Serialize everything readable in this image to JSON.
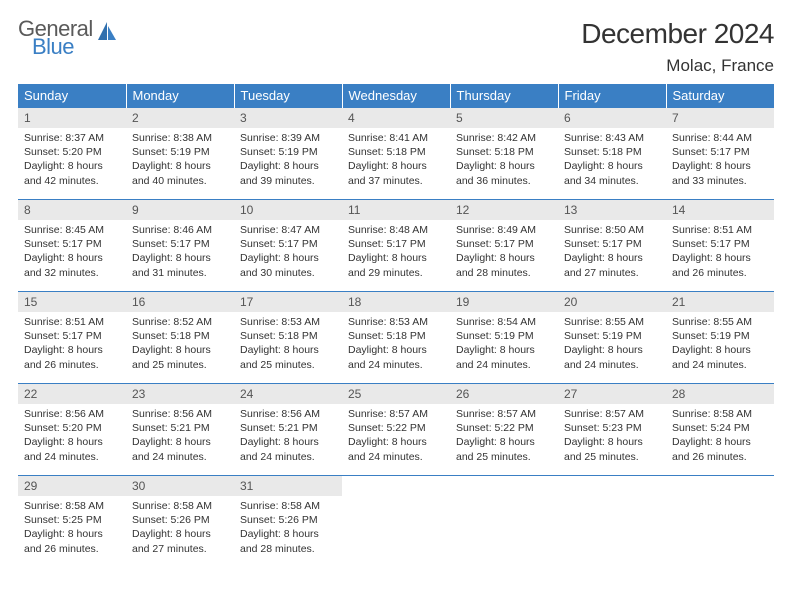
{
  "brand": {
    "line1": "General",
    "line2": "Blue"
  },
  "title": "December 2024",
  "location": "Molac, France",
  "colors": {
    "accent": "#3a7fc4",
    "header_bg": "#3a7fc4",
    "header_text": "#ffffff",
    "daynum_bg": "#e9e9e9",
    "daynum_text": "#555555",
    "body_text": "#333333",
    "logo_gray": "#5a5a5a",
    "page_bg": "#ffffff"
  },
  "typography": {
    "title_fontsize": 28,
    "subtitle_fontsize": 17,
    "dayheader_fontsize": 13,
    "daynum_fontsize": 12,
    "cell_fontsize": 10.5
  },
  "calendar": {
    "type": "table",
    "columns": [
      "Sunday",
      "Monday",
      "Tuesday",
      "Wednesday",
      "Thursday",
      "Friday",
      "Saturday"
    ],
    "weeks": [
      [
        {
          "day": "1",
          "sunrise": "Sunrise: 8:37 AM",
          "sunset": "Sunset: 5:20 PM",
          "daylight1": "Daylight: 8 hours",
          "daylight2": "and 42 minutes."
        },
        {
          "day": "2",
          "sunrise": "Sunrise: 8:38 AM",
          "sunset": "Sunset: 5:19 PM",
          "daylight1": "Daylight: 8 hours",
          "daylight2": "and 40 minutes."
        },
        {
          "day": "3",
          "sunrise": "Sunrise: 8:39 AM",
          "sunset": "Sunset: 5:19 PM",
          "daylight1": "Daylight: 8 hours",
          "daylight2": "and 39 minutes."
        },
        {
          "day": "4",
          "sunrise": "Sunrise: 8:41 AM",
          "sunset": "Sunset: 5:18 PM",
          "daylight1": "Daylight: 8 hours",
          "daylight2": "and 37 minutes."
        },
        {
          "day": "5",
          "sunrise": "Sunrise: 8:42 AM",
          "sunset": "Sunset: 5:18 PM",
          "daylight1": "Daylight: 8 hours",
          "daylight2": "and 36 minutes."
        },
        {
          "day": "6",
          "sunrise": "Sunrise: 8:43 AM",
          "sunset": "Sunset: 5:18 PM",
          "daylight1": "Daylight: 8 hours",
          "daylight2": "and 34 minutes."
        },
        {
          "day": "7",
          "sunrise": "Sunrise: 8:44 AM",
          "sunset": "Sunset: 5:17 PM",
          "daylight1": "Daylight: 8 hours",
          "daylight2": "and 33 minutes."
        }
      ],
      [
        {
          "day": "8",
          "sunrise": "Sunrise: 8:45 AM",
          "sunset": "Sunset: 5:17 PM",
          "daylight1": "Daylight: 8 hours",
          "daylight2": "and 32 minutes."
        },
        {
          "day": "9",
          "sunrise": "Sunrise: 8:46 AM",
          "sunset": "Sunset: 5:17 PM",
          "daylight1": "Daylight: 8 hours",
          "daylight2": "and 31 minutes."
        },
        {
          "day": "10",
          "sunrise": "Sunrise: 8:47 AM",
          "sunset": "Sunset: 5:17 PM",
          "daylight1": "Daylight: 8 hours",
          "daylight2": "and 30 minutes."
        },
        {
          "day": "11",
          "sunrise": "Sunrise: 8:48 AM",
          "sunset": "Sunset: 5:17 PM",
          "daylight1": "Daylight: 8 hours",
          "daylight2": "and 29 minutes."
        },
        {
          "day": "12",
          "sunrise": "Sunrise: 8:49 AM",
          "sunset": "Sunset: 5:17 PM",
          "daylight1": "Daylight: 8 hours",
          "daylight2": "and 28 minutes."
        },
        {
          "day": "13",
          "sunrise": "Sunrise: 8:50 AM",
          "sunset": "Sunset: 5:17 PM",
          "daylight1": "Daylight: 8 hours",
          "daylight2": "and 27 minutes."
        },
        {
          "day": "14",
          "sunrise": "Sunrise: 8:51 AM",
          "sunset": "Sunset: 5:17 PM",
          "daylight1": "Daylight: 8 hours",
          "daylight2": "and 26 minutes."
        }
      ],
      [
        {
          "day": "15",
          "sunrise": "Sunrise: 8:51 AM",
          "sunset": "Sunset: 5:17 PM",
          "daylight1": "Daylight: 8 hours",
          "daylight2": "and 26 minutes."
        },
        {
          "day": "16",
          "sunrise": "Sunrise: 8:52 AM",
          "sunset": "Sunset: 5:18 PM",
          "daylight1": "Daylight: 8 hours",
          "daylight2": "and 25 minutes."
        },
        {
          "day": "17",
          "sunrise": "Sunrise: 8:53 AM",
          "sunset": "Sunset: 5:18 PM",
          "daylight1": "Daylight: 8 hours",
          "daylight2": "and 25 minutes."
        },
        {
          "day": "18",
          "sunrise": "Sunrise: 8:53 AM",
          "sunset": "Sunset: 5:18 PM",
          "daylight1": "Daylight: 8 hours",
          "daylight2": "and 24 minutes."
        },
        {
          "day": "19",
          "sunrise": "Sunrise: 8:54 AM",
          "sunset": "Sunset: 5:19 PM",
          "daylight1": "Daylight: 8 hours",
          "daylight2": "and 24 minutes."
        },
        {
          "day": "20",
          "sunrise": "Sunrise: 8:55 AM",
          "sunset": "Sunset: 5:19 PM",
          "daylight1": "Daylight: 8 hours",
          "daylight2": "and 24 minutes."
        },
        {
          "day": "21",
          "sunrise": "Sunrise: 8:55 AM",
          "sunset": "Sunset: 5:19 PM",
          "daylight1": "Daylight: 8 hours",
          "daylight2": "and 24 minutes."
        }
      ],
      [
        {
          "day": "22",
          "sunrise": "Sunrise: 8:56 AM",
          "sunset": "Sunset: 5:20 PM",
          "daylight1": "Daylight: 8 hours",
          "daylight2": "and 24 minutes."
        },
        {
          "day": "23",
          "sunrise": "Sunrise: 8:56 AM",
          "sunset": "Sunset: 5:21 PM",
          "daylight1": "Daylight: 8 hours",
          "daylight2": "and 24 minutes."
        },
        {
          "day": "24",
          "sunrise": "Sunrise: 8:56 AM",
          "sunset": "Sunset: 5:21 PM",
          "daylight1": "Daylight: 8 hours",
          "daylight2": "and 24 minutes."
        },
        {
          "day": "25",
          "sunrise": "Sunrise: 8:57 AM",
          "sunset": "Sunset: 5:22 PM",
          "daylight1": "Daylight: 8 hours",
          "daylight2": "and 24 minutes."
        },
        {
          "day": "26",
          "sunrise": "Sunrise: 8:57 AM",
          "sunset": "Sunset: 5:22 PM",
          "daylight1": "Daylight: 8 hours",
          "daylight2": "and 25 minutes."
        },
        {
          "day": "27",
          "sunrise": "Sunrise: 8:57 AM",
          "sunset": "Sunset: 5:23 PM",
          "daylight1": "Daylight: 8 hours",
          "daylight2": "and 25 minutes."
        },
        {
          "day": "28",
          "sunrise": "Sunrise: 8:58 AM",
          "sunset": "Sunset: 5:24 PM",
          "daylight1": "Daylight: 8 hours",
          "daylight2": "and 26 minutes."
        }
      ],
      [
        {
          "day": "29",
          "sunrise": "Sunrise: 8:58 AM",
          "sunset": "Sunset: 5:25 PM",
          "daylight1": "Daylight: 8 hours",
          "daylight2": "and 26 minutes."
        },
        {
          "day": "30",
          "sunrise": "Sunrise: 8:58 AM",
          "sunset": "Sunset: 5:26 PM",
          "daylight1": "Daylight: 8 hours",
          "daylight2": "and 27 minutes."
        },
        {
          "day": "31",
          "sunrise": "Sunrise: 8:58 AM",
          "sunset": "Sunset: 5:26 PM",
          "daylight1": "Daylight: 8 hours",
          "daylight2": "and 28 minutes."
        },
        {
          "empty": true
        },
        {
          "empty": true
        },
        {
          "empty": true
        },
        {
          "empty": true
        }
      ]
    ]
  }
}
